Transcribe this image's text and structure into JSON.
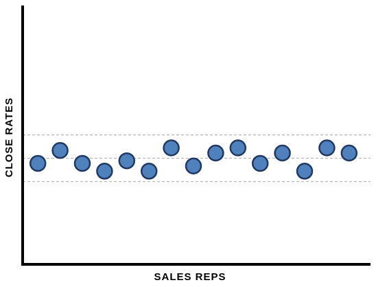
{
  "chart_data": {
    "type": "scatter",
    "x_label": "SALES REPS",
    "y_label": "CLOSE RATES",
    "categories": [
      null,
      null,
      null,
      null,
      null,
      null,
      null,
      null,
      null,
      null,
      null,
      null,
      null,
      null,
      null
    ],
    "values": [
      39,
      44,
      39,
      36,
      40,
      36,
      45,
      38,
      43,
      45,
      39,
      43,
      36,
      45,
      43
    ],
    "color": "#4f81bd",
    "edge_color": "#1f3864",
    "reference_lines": [
      50,
      41,
      32
    ],
    "ylim": [
      0,
      100
    ]
  }
}
